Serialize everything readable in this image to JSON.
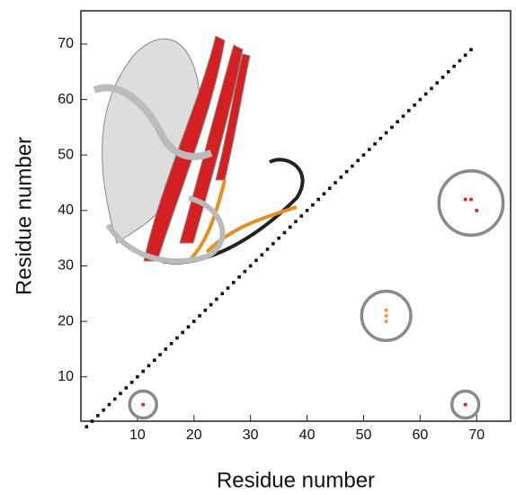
{
  "chart_data": {
    "type": "scatter",
    "xlabel": "Residue number",
    "ylabel": "Residue number",
    "xlim": [
      0,
      76
    ],
    "ylim": [
      2,
      76
    ],
    "xticks": [
      10,
      20,
      30,
      40,
      50,
      60,
      70
    ],
    "yticks": [
      10,
      20,
      30,
      40,
      50,
      60,
      70
    ],
    "series": [
      {
        "color": "#111111",
        "circled": false,
        "x": [
          1,
          2,
          3,
          4,
          5,
          6,
          7,
          8,
          9,
          10,
          11,
          12,
          13,
          14,
          15,
          16,
          17,
          18,
          19,
          20,
          21,
          22,
          23,
          24,
          25,
          26,
          27,
          28,
          29,
          30,
          31,
          32,
          33,
          34,
          35,
          36,
          37,
          38,
          39,
          40,
          41,
          42,
          43,
          44,
          45,
          46,
          47,
          48,
          49,
          50,
          51,
          52,
          53,
          54,
          55,
          56,
          57,
          58,
          59,
          60,
          61,
          62,
          63,
          64,
          65,
          66,
          67,
          68,
          69
        ],
        "values": [
          1,
          2,
          3,
          4,
          5,
          6,
          7,
          8,
          9,
          10,
          11,
          12,
          13,
          14,
          15,
          16,
          17,
          18,
          19,
          20,
          21,
          22,
          23,
          24,
          25,
          26,
          27,
          28,
          29,
          30,
          31,
          32,
          33,
          34,
          35,
          36,
          37,
          38,
          39,
          40,
          41,
          42,
          43,
          44,
          45,
          46,
          47,
          48,
          49,
          50,
          51,
          52,
          53,
          54,
          55,
          56,
          57,
          58,
          59,
          60,
          61,
          62,
          63,
          64,
          65,
          66,
          67,
          68,
          69
        ]
      },
      {
        "color": "#e02020",
        "circled": true,
        "x": [
          68,
          69,
          70
        ],
        "values": [
          42,
          42,
          40
        ]
      },
      {
        "color": "#f39a1e",
        "circled": true,
        "x": [
          54,
          54,
          54
        ],
        "values": [
          22,
          21,
          20
        ]
      },
      {
        "color": "#e02020",
        "circled": true,
        "x": [
          11
        ],
        "values": [
          5
        ]
      },
      {
        "color": "#e02020",
        "circled": true,
        "x": [
          68
        ],
        "values": [
          5
        ]
      }
    ]
  }
}
